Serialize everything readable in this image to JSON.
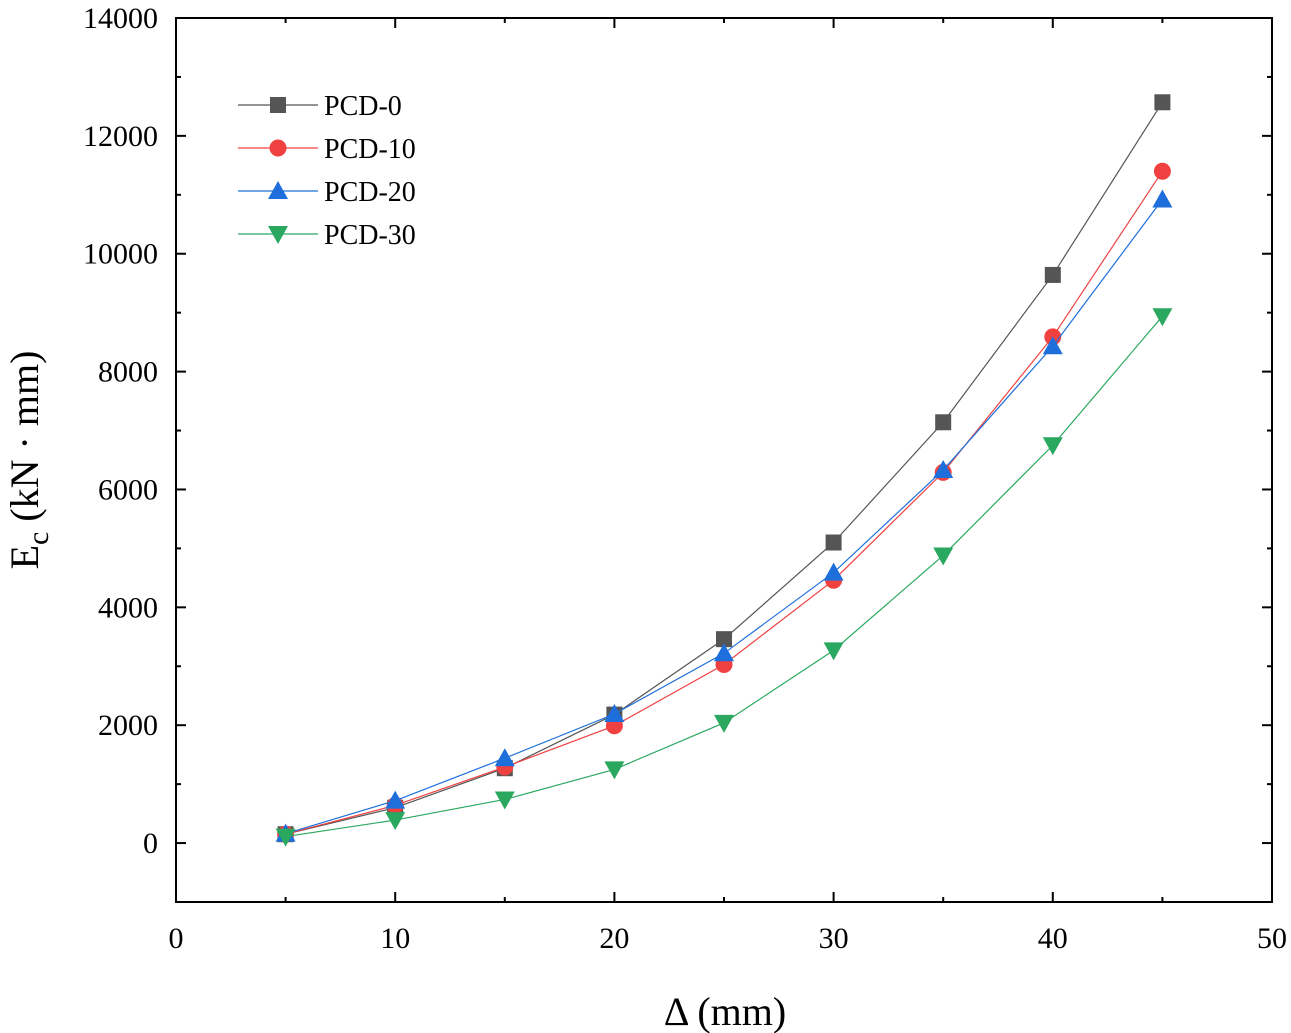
{
  "chart_data": {
    "type": "line",
    "title": "",
    "xlabel": "Δ (mm)",
    "ylabel_main": "E",
    "ylabel_sub": "c",
    "ylabel_rest": " (kN · mm)",
    "xlim": [
      0,
      50
    ],
    "ylim": [
      -1000,
      14000
    ],
    "xticks": [
      0,
      10,
      20,
      30,
      40,
      50
    ],
    "yticks": [
      0,
      2000,
      4000,
      6000,
      8000,
      10000,
      12000,
      14000
    ],
    "grid": false,
    "legend_position": "top-left",
    "x": [
      5,
      10,
      15,
      20,
      25,
      30,
      35,
      40,
      45
    ],
    "series": [
      {
        "name": "PCD-0",
        "color": "#555555",
        "marker": "square",
        "values": [
          150,
          600,
          1270,
          2180,
          3460,
          5100,
          7140,
          9640,
          12570
        ]
      },
      {
        "name": "PCD-10",
        "color": "#f04040",
        "marker": "circle",
        "values": [
          150,
          640,
          1290,
          1990,
          3030,
          4460,
          6290,
          8590,
          11400
        ]
      },
      {
        "name": "PCD-20",
        "color": "#1e6fdc",
        "marker": "triangle-up",
        "values": [
          160,
          720,
          1440,
          2190,
          3220,
          4590,
          6330,
          8430,
          10920
        ]
      },
      {
        "name": "PCD-30",
        "color": "#2aa860",
        "marker": "triangle-down",
        "values": [
          110,
          390,
          740,
          1250,
          2040,
          3270,
          4880,
          6750,
          8940
        ]
      }
    ]
  }
}
